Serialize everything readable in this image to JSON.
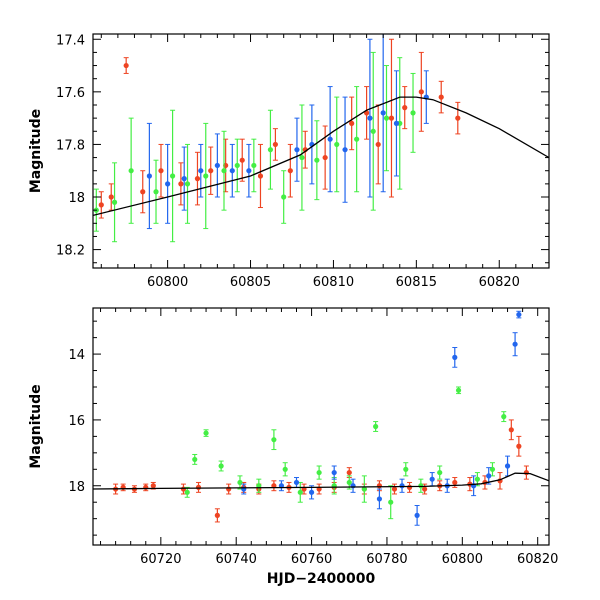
{
  "chart_data": [
    {
      "type": "scatter",
      "title": "",
      "xlabel": "",
      "ylabel": "Magnitude",
      "xlim": [
        60795.5,
        60823
      ],
      "ylim": [
        18.27,
        17.38
      ],
      "y_inverted": true,
      "xticks": [
        60800,
        60805,
        60810,
        60815,
        60820
      ],
      "yticks": [
        17.4,
        17.6,
        17.8,
        18.0,
        18.2
      ],
      "ytick_labels": [
        "17.4",
        "17.6",
        "17.8",
        "18",
        "18.2"
      ],
      "grid": false,
      "legend": "none",
      "model_curve": {
        "x": [
          60795.5,
          60800,
          60805,
          60808,
          60810,
          60812,
          60814,
          60815,
          60816,
          60818,
          60820,
          60823
        ],
        "y": [
          18.07,
          18.0,
          17.92,
          17.84,
          17.75,
          17.67,
          17.62,
          17.62,
          17.63,
          17.68,
          17.74,
          17.85
        ]
      },
      "series": [
        {
          "color": "#ee4422",
          "x": [
            60796.0,
            60796.6,
            60797.5,
            60798.5,
            60799.6,
            60800.8,
            60801.8,
            60802.6,
            60803.5,
            60804.5,
            60805.6,
            60806.5,
            60807.4,
            60808.3,
            60809.5,
            60811.1,
            60812.0,
            60812.7,
            60813.5,
            60814.3,
            60815.3,
            60816.5,
            60817.5
          ],
          "y": [
            18.03,
            18.0,
            17.5,
            17.98,
            17.9,
            17.95,
            17.93,
            17.9,
            17.88,
            17.86,
            17.92,
            17.8,
            17.9,
            17.82,
            17.85,
            17.72,
            17.68,
            17.8,
            17.7,
            17.66,
            17.6,
            17.62,
            17.7
          ],
          "err": [
            0.05,
            0.05,
            0.03,
            0.08,
            0.1,
            0.08,
            0.1,
            0.09,
            0.1,
            0.08,
            0.12,
            0.06,
            0.1,
            0.07,
            0.12,
            0.1,
            0.1,
            0.15,
            0.3,
            0.08,
            0.15,
            0.06,
            0.06
          ]
        },
        {
          "color": "#44ee44",
          "x": [
            60795.7,
            60796.8,
            60797.8,
            60799.3,
            60800.3,
            60801.2,
            60802.3,
            60803.4,
            60804.2,
            60805.2,
            60806.2,
            60807.0,
            60808.1,
            60809.0,
            60810.2,
            60811.4,
            60812.4,
            60813.2,
            60814.0,
            60814.8
          ],
          "y": [
            18.05,
            18.02,
            17.9,
            17.98,
            17.92,
            17.95,
            17.92,
            17.9,
            17.88,
            17.88,
            17.82,
            18.0,
            17.85,
            17.86,
            17.8,
            17.78,
            17.75,
            17.7,
            17.72,
            17.68
          ],
          "err": [
            0.08,
            0.15,
            0.2,
            0.12,
            0.25,
            0.15,
            0.2,
            0.15,
            0.1,
            0.1,
            0.15,
            0.1,
            0.2,
            0.15,
            0.18,
            0.2,
            0.3,
            0.2,
            0.25,
            0.15
          ]
        },
        {
          "color": "#2266ee",
          "x": [
            60798.9,
            60800.0,
            60801.0,
            60802.0,
            60803.0,
            60803.9,
            60804.9,
            60807.8,
            60808.7,
            60809.8,
            60810.7,
            60812.2,
            60813.0,
            60813.8,
            60815.6
          ],
          "y": [
            17.92,
            17.95,
            17.93,
            17.9,
            17.88,
            17.9,
            17.9,
            17.82,
            17.8,
            17.78,
            17.82,
            17.7,
            17.68,
            17.72,
            17.62
          ],
          "err": [
            0.2,
            0.15,
            0.12,
            0.1,
            0.12,
            0.1,
            0.1,
            0.12,
            0.15,
            0.2,
            0.2,
            0.3,
            0.3,
            0.2,
            0.1
          ]
        }
      ]
    },
    {
      "type": "scatter",
      "title": "",
      "xlabel": "HJD−2400000",
      "ylabel": "Magnitude",
      "xlim": [
        60702,
        60823
      ],
      "ylim": [
        19.8,
        12.6
      ],
      "y_inverted": true,
      "xticks": [
        60720,
        60740,
        60760,
        60780,
        60800,
        60820
      ],
      "yticks": [
        14,
        16,
        18
      ],
      "ytick_labels": [
        "14",
        "16",
        "18"
      ],
      "grid": false,
      "legend": "none",
      "model_curve": {
        "x": [
          60702,
          60720,
          60760,
          60790,
          60800,
          60805,
          60810,
          60814,
          60818,
          60823
        ],
        "y": [
          18.1,
          18.08,
          18.05,
          18.02,
          17.98,
          17.94,
          17.82,
          17.62,
          17.63,
          17.85
        ]
      },
      "series": [
        {
          "color": "#ee4422",
          "x": [
            60708,
            60710,
            60713,
            60716,
            60718,
            60726,
            60730,
            60735,
            60738,
            60742,
            60746,
            60750,
            60754,
            60758,
            60762,
            60766,
            60770,
            60774,
            60778,
            60782,
            60786,
            60790,
            60794,
            60798,
            60802,
            60806,
            60810,
            60813,
            60815,
            60817
          ],
          "y": [
            18.1,
            18.05,
            18.1,
            18.05,
            18.0,
            18.1,
            18.05,
            18.9,
            18.1,
            18.05,
            18.1,
            18.0,
            18.05,
            18.1,
            18.1,
            18.05,
            17.6,
            18.1,
            18.0,
            18.1,
            18.05,
            18.1,
            18.0,
            17.9,
            17.95,
            17.9,
            17.85,
            16.3,
            16.8,
            17.6
          ],
          "err": [
            0.15,
            0.1,
            0.1,
            0.1,
            0.1,
            0.15,
            0.15,
            0.2,
            0.15,
            0.15,
            0.15,
            0.15,
            0.15,
            0.15,
            0.15,
            0.15,
            0.15,
            0.15,
            0.15,
            0.15,
            0.15,
            0.15,
            0.15,
            0.15,
            0.2,
            0.2,
            0.25,
            0.3,
            0.3,
            0.2
          ]
        },
        {
          "color": "#44ee44",
          "x": [
            60727,
            60729,
            60732,
            60736,
            60741,
            60746,
            60750,
            60753,
            60757,
            60762,
            60766,
            60770,
            60774,
            60777,
            60781,
            60785,
            60789,
            60794,
            60799,
            60804,
            60808,
            60811
          ],
          "y": [
            18.2,
            17.2,
            16.4,
            17.4,
            17.9,
            18.0,
            16.6,
            17.5,
            18.2,
            17.6,
            18.0,
            17.9,
            18.1,
            16.2,
            18.5,
            17.5,
            18.0,
            17.6,
            15.1,
            17.8,
            17.5,
            15.9
          ],
          "err": [
            0.15,
            0.15,
            0.1,
            0.15,
            0.2,
            0.2,
            0.3,
            0.2,
            0.3,
            0.2,
            0.25,
            0.2,
            0.4,
            0.15,
            0.5,
            0.2,
            0.2,
            0.2,
            0.1,
            0.2,
            0.2,
            0.15
          ]
        },
        {
          "color": "#2266ee",
          "x": [
            60742,
            60752,
            60756,
            60760,
            60766,
            60771,
            60778,
            60784,
            60788,
            60792,
            60796,
            60798,
            60803,
            60807,
            60812,
            60814,
            60815
          ],
          "y": [
            18.1,
            18.0,
            17.9,
            18.2,
            17.6,
            18.0,
            18.4,
            18.0,
            18.9,
            17.8,
            18.0,
            14.1,
            18.0,
            17.7,
            17.4,
            13.7,
            12.8
          ],
          "err": [
            0.15,
            0.15,
            0.15,
            0.2,
            0.2,
            0.2,
            0.3,
            0.2,
            0.3,
            0.2,
            0.2,
            0.3,
            0.3,
            0.25,
            0.3,
            0.35,
            0.1
          ]
        }
      ]
    }
  ]
}
